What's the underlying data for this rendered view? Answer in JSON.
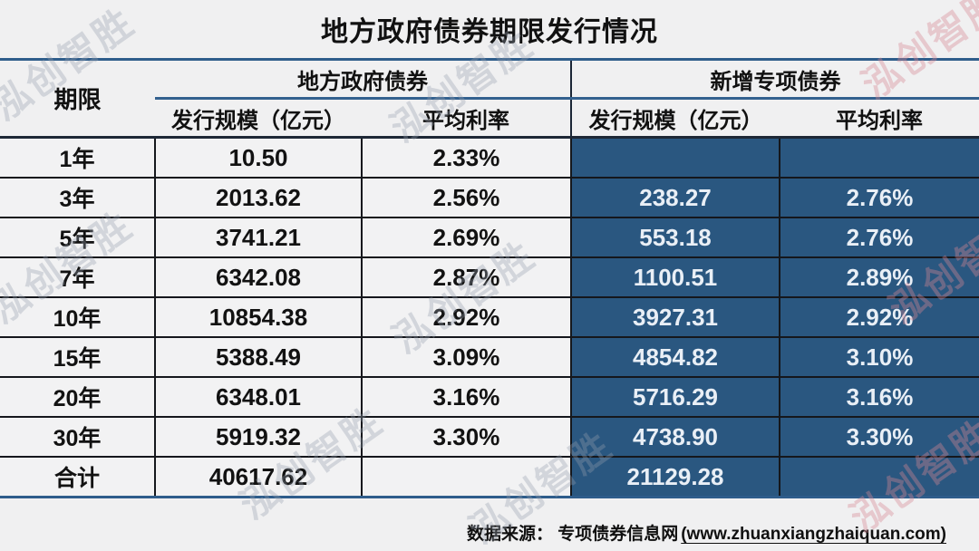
{
  "page": {
    "title": "地方政府债券期限发行情况"
  },
  "table": {
    "col_term": "期限",
    "group_lgb": "地方政府债券",
    "group_spec": "新增专项债券",
    "col_scale": "发行规模（亿元）",
    "col_rate": "平均利率",
    "rows": [
      {
        "term": "1年",
        "lgb_scale": "10.50",
        "lgb_rate": "2.33%",
        "spec_scale": "",
        "spec_rate": ""
      },
      {
        "term": "3年",
        "lgb_scale": "2013.62",
        "lgb_rate": "2.56%",
        "spec_scale": "238.27",
        "spec_rate": "2.76%"
      },
      {
        "term": "5年",
        "lgb_scale": "3741.21",
        "lgb_rate": "2.69%",
        "spec_scale": "553.18",
        "spec_rate": "2.76%"
      },
      {
        "term": "7年",
        "lgb_scale": "6342.08",
        "lgb_rate": "2.87%",
        "spec_scale": "1100.51",
        "spec_rate": "2.89%"
      },
      {
        "term": "10年",
        "lgb_scale": "10854.38",
        "lgb_rate": "2.92%",
        "spec_scale": "3927.31",
        "spec_rate": "2.92%"
      },
      {
        "term": "15年",
        "lgb_scale": "5388.49",
        "lgb_rate": "3.09%",
        "spec_scale": "4854.82",
        "spec_rate": "3.10%"
      },
      {
        "term": "20年",
        "lgb_scale": "6348.01",
        "lgb_rate": "3.16%",
        "spec_scale": "5716.29",
        "spec_rate": "3.16%"
      },
      {
        "term": "30年",
        "lgb_scale": "5919.32",
        "lgb_rate": "3.30%",
        "spec_scale": "4738.90",
        "spec_rate": "3.30%"
      },
      {
        "term": "合计",
        "lgb_scale": "40617.62",
        "lgb_rate": "",
        "spec_scale": "21129.28",
        "spec_rate": ""
      }
    ]
  },
  "footer": {
    "prefix": "数据来源： 专项债券信息网",
    "link": "(www.zhuanxiangzhaiquan.com)"
  },
  "watermark": {
    "text": "泓创智胜"
  },
  "colors": {
    "background": "#f0f0f1",
    "cell_light": "#f2f2f3",
    "cell_dark": "#2a5780",
    "line_blue": "#2f5d8b",
    "line_dark": "#15171c",
    "text_dark_cell": "#e9eff6",
    "watermark_gray": "#969eac",
    "watermark_pink": "#d48792"
  },
  "chart_data": {
    "type": "table",
    "title": "地方政府债券期限发行情况",
    "column_groups": [
      "地方政府债券",
      "新增专项债券"
    ],
    "columns": [
      "期限",
      "地方政府债券 发行规模（亿元）",
      "地方政府债券 平均利率",
      "新增专项债券 发行规模（亿元）",
      "新增专项债券 平均利率"
    ],
    "rows": [
      [
        "1年",
        10.5,
        "2.33%",
        null,
        null
      ],
      [
        "3年",
        2013.62,
        "2.56%",
        238.27,
        "2.76%"
      ],
      [
        "5年",
        3741.21,
        "2.69%",
        553.18,
        "2.76%"
      ],
      [
        "7年",
        6342.08,
        "2.87%",
        1100.51,
        "2.89%"
      ],
      [
        "10年",
        10854.38,
        "2.92%",
        3927.31,
        "2.92%"
      ],
      [
        "15年",
        5388.49,
        "3.09%",
        4854.82,
        "3.10%"
      ],
      [
        "20年",
        6348.01,
        "3.16%",
        5716.29,
        "3.16%"
      ],
      [
        "30年",
        5919.32,
        "3.30%",
        4738.9,
        "3.30%"
      ],
      [
        "合计",
        40617.62,
        "",
        21129.28,
        ""
      ]
    ],
    "source": "数据来源： 专项债券信息网(www.zhuanxiangzhaiquan.com)"
  }
}
